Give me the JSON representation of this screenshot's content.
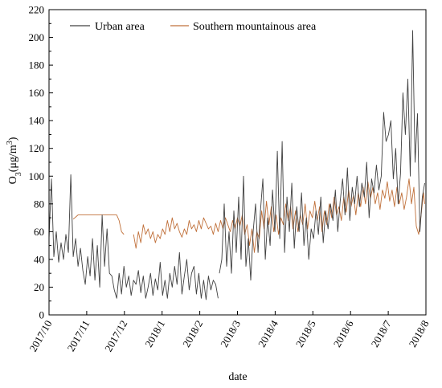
{
  "chart_data": {
    "type": "line",
    "title": "",
    "xlabel": "date",
    "ylabel_main": "O",
    "ylabel_sub": "3",
    "ylabel_unit": "(μg/m",
    "ylabel_sup": "3",
    "ylabel_close": ")",
    "ylim": [
      0,
      220
    ],
    "y_ticks": [
      0,
      20,
      40,
      60,
      80,
      100,
      120,
      140,
      160,
      180,
      200,
      220
    ],
    "x_ticks": [
      "2017/10",
      "2017/11",
      "2017/12",
      "2018/1",
      "2018/2",
      "2018/3",
      "2018/4",
      "2018/5",
      "2018/6",
      "2018/7",
      "2018/8"
    ],
    "legend_position": "top",
    "grid": false,
    "series": [
      {
        "name": "Urban area",
        "color": "#404040",
        "points": [
          [
            0,
            55
          ],
          [
            2,
            98
          ],
          [
            4,
            42
          ],
          [
            6,
            60
          ],
          [
            8,
            38
          ],
          [
            10,
            52
          ],
          [
            12,
            40
          ],
          [
            14,
            58
          ],
          [
            16,
            45
          ],
          [
            18,
            101
          ],
          [
            20,
            42
          ],
          [
            22,
            55
          ],
          [
            24,
            35
          ],
          [
            26,
            48
          ],
          [
            28,
            32
          ],
          [
            30,
            22
          ],
          [
            32,
            42
          ],
          [
            34,
            28
          ],
          [
            36,
            55
          ],
          [
            38,
            25
          ],
          [
            40,
            50
          ],
          [
            42,
            20
          ],
          [
            44,
            72
          ],
          [
            46,
            35
          ],
          [
            48,
            62
          ],
          [
            50,
            30
          ],
          [
            52,
            28
          ],
          [
            54,
            18
          ],
          [
            56,
            12
          ],
          [
            58,
            30
          ],
          [
            60,
            15
          ],
          [
            62,
            35
          ],
          [
            64,
            20
          ],
          [
            66,
            28
          ],
          [
            68,
            14
          ],
          [
            70,
            25
          ],
          [
            72,
            22
          ],
          [
            74,
            32
          ],
          [
            76,
            16
          ],
          [
            78,
            28
          ],
          [
            80,
            12
          ],
          [
            82,
            20
          ],
          [
            84,
            30
          ],
          [
            86,
            14
          ],
          [
            88,
            26
          ],
          [
            90,
            18
          ],
          [
            92,
            38
          ],
          [
            94,
            14
          ],
          [
            96,
            25
          ],
          [
            98,
            12
          ],
          [
            100,
            30
          ],
          [
            102,
            20
          ],
          [
            104,
            35
          ],
          [
            106,
            22
          ],
          [
            108,
            45
          ],
          [
            110,
            15
          ],
          [
            112,
            28
          ],
          [
            114,
            40
          ],
          [
            116,
            18
          ],
          [
            118,
            30
          ],
          [
            120,
            35
          ],
          [
            122,
            15
          ],
          [
            124,
            30
          ],
          [
            126,
            12
          ],
          [
            128,
            25
          ],
          [
            130,
            11
          ],
          [
            132,
            28
          ],
          [
            134,
            18
          ],
          [
            136,
            25
          ],
          [
            138,
            22
          ],
          [
            140,
            12
          ],
          [
            null,
            null
          ],
          [
            141,
            30
          ],
          [
            143,
            40
          ],
          [
            145,
            80
          ],
          [
            147,
            35
          ],
          [
            149,
            60
          ],
          [
            151,
            30
          ],
          [
            153,
            75
          ],
          [
            155,
            45
          ],
          [
            157,
            85
          ],
          [
            159,
            40
          ],
          [
            161,
            100
          ],
          [
            163,
            35
          ],
          [
            165,
            55
          ],
          [
            167,
            25
          ],
          [
            169,
            60
          ],
          [
            171,
            80
          ],
          [
            173,
            45
          ],
          [
            175,
            75
          ],
          [
            177,
            98
          ],
          [
            179,
            40
          ],
          [
            181,
            70
          ],
          [
            183,
            50
          ],
          [
            185,
            90
          ],
          [
            187,
            60
          ],
          [
            189,
            118
          ],
          [
            191,
            55
          ],
          [
            193,
            125
          ],
          [
            195,
            45
          ],
          [
            197,
            85
          ],
          [
            199,
            60
          ],
          [
            201,
            95
          ],
          [
            203,
            48
          ],
          [
            205,
            78
          ],
          [
            207,
            60
          ],
          [
            209,
            88
          ],
          [
            211,
            50
          ],
          [
            213,
            70
          ],
          [
            215,
            40
          ],
          [
            217,
            62
          ],
          [
            219,
            55
          ],
          [
            221,
            75
          ],
          [
            223,
            58
          ],
          [
            225,
            85
          ],
          [
            227,
            52
          ],
          [
            229,
            75
          ],
          [
            231,
            62
          ],
          [
            233,
            80
          ],
          [
            235,
            68
          ],
          [
            237,
            90
          ],
          [
            239,
            60
          ],
          [
            241,
            82
          ],
          [
            243,
            98
          ],
          [
            245,
            72
          ],
          [
            247,
            106
          ],
          [
            249,
            68
          ],
          [
            251,
            92
          ],
          [
            253,
            80
          ],
          [
            255,
            100
          ],
          [
            257,
            78
          ],
          [
            259,
            95
          ],
          [
            261,
            85
          ],
          [
            263,
            110
          ],
          [
            265,
            70
          ],
          [
            267,
            98
          ],
          [
            269,
            88
          ],
          [
            271,
            108
          ],
          [
            273,
            90
          ],
          [
            275,
            100
          ],
          [
            277,
            146
          ],
          [
            279,
            125
          ],
          [
            281,
            130
          ],
          [
            283,
            140
          ],
          [
            285,
            98
          ],
          [
            287,
            120
          ],
          [
            289,
            80
          ],
          [
            291,
            102
          ],
          [
            293,
            160
          ],
          [
            295,
            130
          ],
          [
            297,
            170
          ],
          [
            299,
            100
          ],
          [
            301,
            205
          ],
          [
            303,
            110
          ],
          [
            305,
            145
          ],
          [
            307,
            60
          ],
          [
            309,
            85
          ],
          [
            311,
            95
          ]
        ]
      },
      {
        "name": "Southern mountainous area",
        "color": "#c0703a",
        "points": [
          [
            20,
            69
          ],
          [
            24,
            72
          ],
          [
            30,
            72
          ],
          [
            40,
            72
          ],
          [
            50,
            72
          ],
          [
            56,
            72
          ],
          [
            58,
            68
          ],
          [
            60,
            60
          ],
          [
            62,
            58
          ],
          [
            null,
            null
          ],
          [
            70,
            58
          ],
          [
            72,
            48
          ],
          [
            74,
            60
          ],
          [
            76,
            52
          ],
          [
            78,
            65
          ],
          [
            80,
            58
          ],
          [
            82,
            62
          ],
          [
            84,
            55
          ],
          [
            86,
            60
          ],
          [
            88,
            52
          ],
          [
            90,
            58
          ],
          [
            92,
            55
          ],
          [
            94,
            62
          ],
          [
            96,
            58
          ],
          [
            98,
            68
          ],
          [
            100,
            60
          ],
          [
            102,
            70
          ],
          [
            104,
            62
          ],
          [
            106,
            66
          ],
          [
            108,
            60
          ],
          [
            110,
            56
          ],
          [
            112,
            62
          ],
          [
            114,
            58
          ],
          [
            116,
            68
          ],
          [
            118,
            62
          ],
          [
            120,
            65
          ],
          [
            122,
            60
          ],
          [
            124,
            68
          ],
          [
            126,
            62
          ],
          [
            128,
            70
          ],
          [
            130,
            66
          ],
          [
            132,
            62
          ],
          [
            134,
            64
          ],
          [
            136,
            58
          ],
          [
            138,
            66
          ],
          [
            140,
            60
          ],
          [
            142,
            68
          ],
          [
            144,
            62
          ],
          [
            146,
            70
          ],
          [
            148,
            65
          ],
          [
            150,
            60
          ],
          [
            152,
            68
          ],
          [
            154,
            62
          ],
          [
            156,
            70
          ],
          [
            158,
            64
          ],
          [
            160,
            72
          ],
          [
            162,
            58
          ],
          [
            164,
            65
          ],
          [
            166,
            50
          ],
          [
            168,
            62
          ],
          [
            170,
            45
          ],
          [
            172,
            60
          ],
          [
            174,
            55
          ],
          [
            176,
            75
          ],
          [
            178,
            62
          ],
          [
            180,
            82
          ],
          [
            182,
            65
          ],
          [
            184,
            78
          ],
          [
            186,
            60
          ],
          [
            188,
            72
          ],
          [
            190,
            58
          ],
          [
            192,
            70
          ],
          [
            194,
            65
          ],
          [
            196,
            80
          ],
          [
            198,
            68
          ],
          [
            200,
            78
          ],
          [
            202,
            62
          ],
          [
            204,
            75
          ],
          [
            206,
            60
          ],
          [
            208,
            72
          ],
          [
            210,
            65
          ],
          [
            212,
            80
          ],
          [
            214,
            62
          ],
          [
            216,
            75
          ],
          [
            218,
            70
          ],
          [
            220,
            82
          ],
          [
            222,
            68
          ],
          [
            224,
            78
          ],
          [
            226,
            60
          ],
          [
            228,
            75
          ],
          [
            230,
            65
          ],
          [
            232,
            80
          ],
          [
            234,
            70
          ],
          [
            236,
            85
          ],
          [
            238,
            72
          ],
          [
            240,
            78
          ],
          [
            242,
            68
          ],
          [
            244,
            85
          ],
          [
            246,
            74
          ],
          [
            248,
            90
          ],
          [
            250,
            78
          ],
          [
            252,
            86
          ],
          [
            254,
            72
          ],
          [
            256,
            88
          ],
          [
            258,
            78
          ],
          [
            260,
            92
          ],
          [
            262,
            80
          ],
          [
            264,
            96
          ],
          [
            266,
            84
          ],
          [
            268,
            92
          ],
          [
            270,
            80
          ],
          [
            272,
            88
          ],
          [
            274,
            76
          ],
          [
            276,
            90
          ],
          [
            278,
            84
          ],
          [
            280,
            96
          ],
          [
            282,
            82
          ],
          [
            284,
            90
          ],
          [
            286,
            78
          ],
          [
            288,
            92
          ],
          [
            290,
            80
          ],
          [
            292,
            88
          ],
          [
            294,
            76
          ],
          [
            296,
            85
          ],
          [
            298,
            98
          ],
          [
            300,
            80
          ],
          [
            302,
            92
          ],
          [
            304,
            64
          ],
          [
            306,
            58
          ],
          [
            308,
            72
          ],
          [
            310,
            88
          ],
          [
            311,
            80
          ]
        ]
      }
    ]
  }
}
